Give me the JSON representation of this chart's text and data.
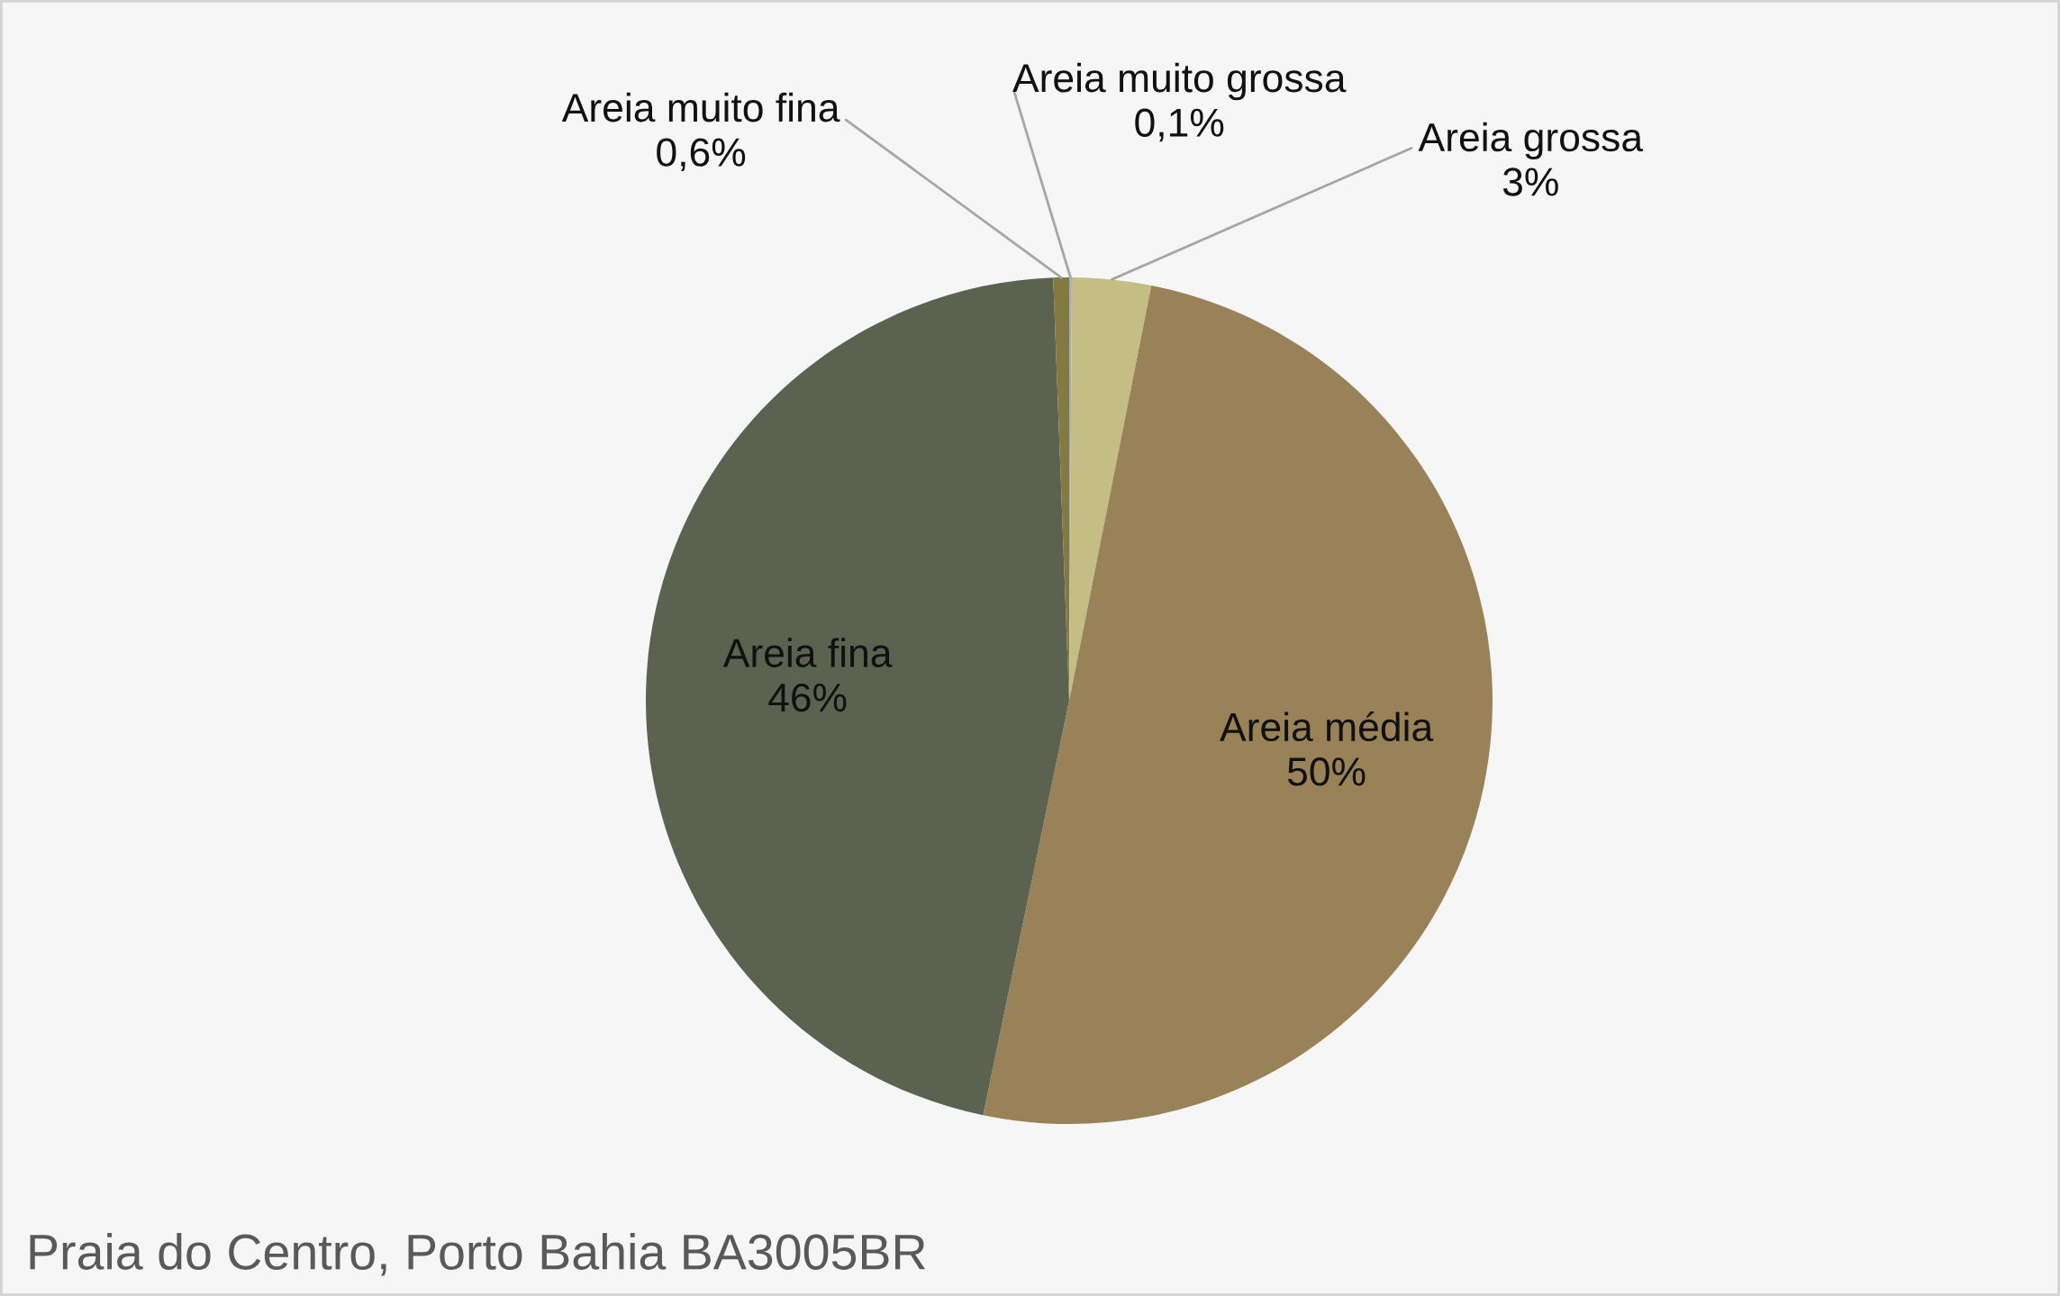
{
  "chart_data": {
    "type": "pie",
    "title": "Praia do Centro, Porto Bahia BA3005BR",
    "categories": [
      "Areia muito grossa",
      "Areia grossa",
      "Areia média",
      "Areia fina",
      "Areia muito fina"
    ],
    "values": [
      0.1,
      3,
      50,
      46,
      0.6
    ],
    "colors": [
      "#a3b1b7",
      "#c4be84",
      "#9a8258",
      "#5b6350",
      "#827a40"
    ],
    "value_labels": [
      "0,1%",
      "3%",
      "50%",
      "46%",
      "0,6%"
    ]
  }
}
